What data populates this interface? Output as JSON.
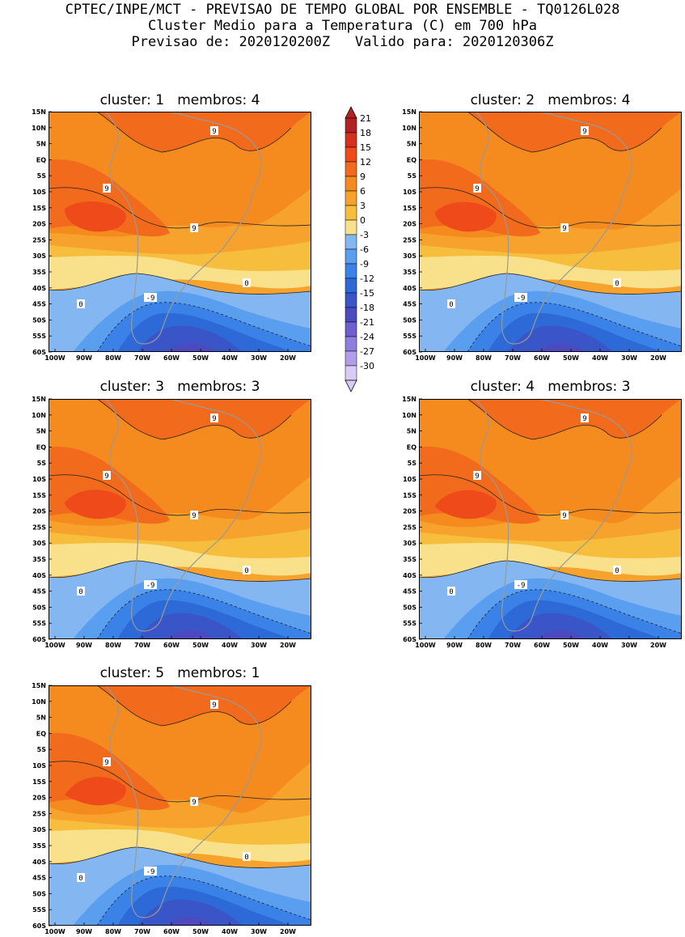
{
  "header": {
    "line1": "CPTEC/INPE/MCT - PREVISAO DE TEMPO GLOBAL POR ENSEMBLE - TQ0126L028",
    "line2": "Cluster Medio para a Temperatura (C) em 700 hPa",
    "line3": "Previsao de: 2020120200Z   Valido para: 2020120306Z"
  },
  "panels": [
    {
      "title": "cluster: 1   membros: 4"
    },
    {
      "title": "cluster: 2   membros: 4"
    },
    {
      "title": "cluster: 3   membros: 3"
    },
    {
      "title": "cluster: 4   membros: 3"
    },
    {
      "title": "cluster: 5   membros: 1"
    }
  ],
  "axes": {
    "lat_labels": [
      "15N",
      "10N",
      "5N",
      "EQ",
      "5S",
      "10S",
      "15S",
      "20S",
      "25S",
      "30S",
      "35S",
      "40S",
      "45S",
      "50S",
      "55S",
      "60S"
    ],
    "lon_labels": [
      "100W",
      "90W",
      "80W",
      "70W",
      "60W",
      "50W",
      "40W",
      "30W",
      "20W"
    ]
  },
  "contour_labels": {
    "warm": "9",
    "zero": "0",
    "cold": "-9"
  },
  "colorbar": {
    "levels": [
      "21",
      "18",
      "15",
      "12",
      "9",
      "6",
      "3",
      "0",
      "-3",
      "-6",
      "-9",
      "-12",
      "-15",
      "-18",
      "-21",
      "-24",
      "-27",
      "-30"
    ],
    "colors": [
      "#b22222",
      "#d6301e",
      "#ee4a1a",
      "#f26a1c",
      "#f58a1f",
      "#f6a22c",
      "#f7bd3c",
      "#f9e08a",
      "#84b6f2",
      "#5a9ef0",
      "#3a82e8",
      "#2d6ad8",
      "#3a55c8",
      "#4d4ac0",
      "#6e5ed0",
      "#8f7ee0",
      "#b09ee8",
      "#d8ccf4"
    ]
  }
}
